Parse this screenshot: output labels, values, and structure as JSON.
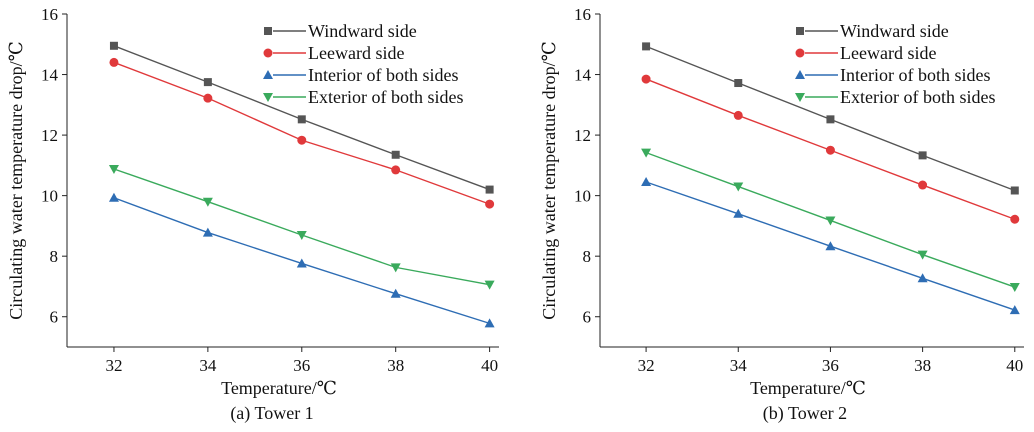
{
  "chart_data": [
    {
      "type": "line",
      "caption": "(a) Tower 1",
      "xlabel": "Temperature/℃",
      "ylabel": "Circulating water temperature drop/℃",
      "x": [
        32,
        34,
        36,
        38,
        40
      ],
      "x_ticks": [
        "32",
        "34",
        "36",
        "38",
        "40"
      ],
      "y_ticks": [
        "6",
        "8",
        "10",
        "12",
        "14",
        "16"
      ],
      "xlim": [
        31,
        40.2
      ],
      "ylim": [
        5,
        16
      ],
      "grid": false,
      "legend_position": "top-right",
      "series": [
        {
          "name": "Windward side",
          "color": "#555555",
          "marker": "square",
          "values": [
            14.95,
            13.75,
            12.52,
            11.35,
            10.2
          ]
        },
        {
          "name": "Leeward side",
          "color": "#e0393b",
          "marker": "circle",
          "values": [
            14.4,
            13.22,
            11.83,
            10.85,
            9.72
          ]
        },
        {
          "name": "Interior of both sides",
          "color": "#2e6db4",
          "marker": "triangle-up",
          "values": [
            9.93,
            8.78,
            7.76,
            6.76,
            5.78
          ]
        },
        {
          "name": "Exterior of both sides",
          "color": "#3aaa5c",
          "marker": "triangle-down",
          "values": [
            10.88,
            9.8,
            8.7,
            7.63,
            7.06
          ]
        }
      ]
    },
    {
      "type": "line",
      "caption": "(b) Tower 2",
      "xlabel": "Temperature/℃",
      "ylabel": "Circulating water temperature drop/℃",
      "x": [
        32,
        34,
        36,
        38,
        40
      ],
      "x_ticks": [
        "32",
        "34",
        "36",
        "38",
        "40"
      ],
      "y_ticks": [
        "6",
        "8",
        "10",
        "12",
        "14",
        "16"
      ],
      "xlim": [
        31,
        40.2
      ],
      "ylim": [
        5,
        16
      ],
      "grid": false,
      "legend_position": "top-right",
      "series": [
        {
          "name": "Windward side",
          "color": "#555555",
          "marker": "square",
          "values": [
            14.93,
            13.72,
            12.52,
            11.33,
            10.17
          ]
        },
        {
          "name": "Leeward side",
          "color": "#e0393b",
          "marker": "circle",
          "values": [
            13.85,
            12.65,
            11.5,
            10.35,
            9.22
          ]
        },
        {
          "name": "Interior of both sides",
          "color": "#2e6db4",
          "marker": "triangle-up",
          "values": [
            10.45,
            9.4,
            8.33,
            7.27,
            6.22
          ]
        },
        {
          "name": "Exterior of both sides",
          "color": "#3aaa5c",
          "marker": "triangle-down",
          "values": [
            11.42,
            10.3,
            9.18,
            8.05,
            6.98
          ]
        }
      ]
    }
  ]
}
